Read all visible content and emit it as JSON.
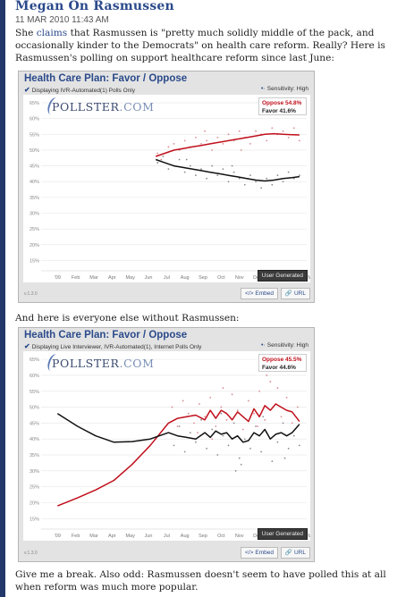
{
  "post": {
    "title": "Megan On Rasmussen",
    "date": "11 MAR 2010 11:43 AM",
    "p1_before": "She ",
    "p1_link": "claims",
    "p1_after": " that Rasmussen is \"pretty much solidly middle of the pack, and occasionally kinder to the Democrats\" on health care reform. Really? Here is Rasmussen's polling on support healthcare reform since last June:",
    "p2": "And here is everyone else without Rasmussen:",
    "p3": "Give me a break. Also odd: Rasmussen doesn't seem to have polled this at all when reform was much more popular."
  },
  "colors": {
    "oppose": "#c0101c",
    "favor": "#111111",
    "accent": "#2b4a8b",
    "sidebar": "#23386a"
  },
  "widget1": {
    "title": "Health Care Plan: Favor / Oppose",
    "subtitle": "Displaying IVR-Automated(1) Polls Only",
    "sensitivity": "Sensitivity: High",
    "logo": "POLLSTER",
    "logo_suffix": ".COM",
    "legend_oppose": "Oppose 54.8%",
    "legend_favor": "Favor 41.6%",
    "user_generated": "User Generated",
    "version": "v.1.3.0",
    "embed_label": "Embed",
    "url_label": "URL"
  },
  "widget2": {
    "title": "Health Care Plan: Favor / Oppose",
    "subtitle": "Displaying Live Interviewer, IVR-Automated(1), Internet Polls Only",
    "sensitivity": "Sensitivity: High",
    "logo": "POLLSTER",
    "logo_suffix": ".COM",
    "legend_oppose": "Oppose 45.5%",
    "legend_favor": "Favor 44.6%",
    "user_generated": "User Generated",
    "version": "v.1.3.0",
    "embed_label": "Embed",
    "url_label": "URL"
  },
  "chart_data": [
    {
      "type": "line",
      "y_ticks": [
        "65%",
        "60%",
        "55%",
        "50%",
        "45%",
        "40%",
        "35%",
        "30%",
        "25%",
        "20%",
        "15%"
      ],
      "ylim": [
        12,
        67
      ],
      "x_ticks": [
        "'09",
        "Feb",
        "Mar",
        "Apr",
        "May",
        "Jun",
        "Jul",
        "Aug",
        "Sep",
        "Oct",
        "Nov",
        "Dec",
        "'10",
        "Feb",
        "Mar"
      ],
      "xlim": [
        0,
        14.6
      ],
      "series": [
        {
          "name": "Oppose",
          "x": [
            6.3,
            6.8,
            7.3,
            7.8,
            8.3,
            8.8,
            9.3,
            9.8,
            10.3,
            10.8,
            11.3,
            11.8,
            12.3,
            12.8,
            13.3,
            13.8,
            14.2
          ],
          "values": [
            48,
            49,
            50,
            50.5,
            51,
            51.5,
            52,
            52.5,
            53,
            53.5,
            54,
            54.5,
            55,
            55.2,
            55,
            54.9,
            54.8
          ]
        },
        {
          "name": "Favor",
          "x": [
            6.3,
            6.8,
            7.3,
            7.8,
            8.3,
            8.8,
            9.3,
            9.8,
            10.3,
            10.8,
            11.3,
            11.8,
            12.3,
            12.8,
            13.3,
            13.8,
            14.2
          ],
          "values": [
            47,
            46,
            45,
            44.5,
            44,
            43.5,
            43,
            42.5,
            42,
            41.5,
            41,
            40.5,
            40.2,
            40.5,
            41,
            41.3,
            41.6
          ]
        }
      ],
      "scatter": [
        {
          "x": 6.4,
          "y": 49,
          "s": "o"
        },
        {
          "x": 6.6,
          "y": 47,
          "s": "o"
        },
        {
          "x": 7.0,
          "y": 51,
          "s": "o"
        },
        {
          "x": 7.3,
          "y": 52,
          "s": "o"
        },
        {
          "x": 7.6,
          "y": 50,
          "s": "o"
        },
        {
          "x": 7.9,
          "y": 53,
          "s": "o"
        },
        {
          "x": 8.2,
          "y": 51,
          "s": "o"
        },
        {
          "x": 8.5,
          "y": 54,
          "s": "o"
        },
        {
          "x": 8.8,
          "y": 52,
          "s": "o"
        },
        {
          "x": 9.1,
          "y": 53,
          "s": "o"
        },
        {
          "x": 9.4,
          "y": 50,
          "s": "o"
        },
        {
          "x": 9.7,
          "y": 54,
          "s": "o"
        },
        {
          "x": 10.0,
          "y": 52,
          "s": "o"
        },
        {
          "x": 10.3,
          "y": 55,
          "s": "o"
        },
        {
          "x": 10.6,
          "y": 53,
          "s": "o"
        },
        {
          "x": 10.9,
          "y": 56,
          "s": "o"
        },
        {
          "x": 11.2,
          "y": 54,
          "s": "o"
        },
        {
          "x": 11.5,
          "y": 52,
          "s": "o"
        },
        {
          "x": 11.8,
          "y": 56,
          "s": "o"
        },
        {
          "x": 12.1,
          "y": 55,
          "s": "o"
        },
        {
          "x": 12.4,
          "y": 53,
          "s": "o"
        },
        {
          "x": 12.7,
          "y": 57,
          "s": "o"
        },
        {
          "x": 13.0,
          "y": 55,
          "s": "o"
        },
        {
          "x": 13.3,
          "y": 56,
          "s": "o"
        },
        {
          "x": 13.6,
          "y": 54,
          "s": "o"
        },
        {
          "x": 13.9,
          "y": 57,
          "s": "o"
        },
        {
          "x": 14.2,
          "y": 53,
          "s": "o"
        },
        {
          "x": 9.0,
          "y": 56,
          "s": "o"
        },
        {
          "x": 11.0,
          "y": 50,
          "s": "o"
        },
        {
          "x": 6.4,
          "y": 46,
          "s": "f"
        },
        {
          "x": 6.7,
          "y": 48,
          "s": "f"
        },
        {
          "x": 7.0,
          "y": 44,
          "s": "f"
        },
        {
          "x": 7.3,
          "y": 45,
          "s": "f"
        },
        {
          "x": 7.6,
          "y": 47,
          "s": "f"
        },
        {
          "x": 7.9,
          "y": 43,
          "s": "f"
        },
        {
          "x": 8.2,
          "y": 45,
          "s": "f"
        },
        {
          "x": 8.5,
          "y": 42,
          "s": "f"
        },
        {
          "x": 8.8,
          "y": 44,
          "s": "f"
        },
        {
          "x": 9.1,
          "y": 41,
          "s": "f"
        },
        {
          "x": 9.4,
          "y": 45,
          "s": "f"
        },
        {
          "x": 9.7,
          "y": 42,
          "s": "f"
        },
        {
          "x": 10.0,
          "y": 44,
          "s": "f"
        },
        {
          "x": 10.3,
          "y": 40,
          "s": "f"
        },
        {
          "x": 10.6,
          "y": 43,
          "s": "f"
        },
        {
          "x": 10.9,
          "y": 41,
          "s": "f"
        },
        {
          "x": 11.2,
          "y": 39,
          "s": "f"
        },
        {
          "x": 11.5,
          "y": 42,
          "s": "f"
        },
        {
          "x": 11.8,
          "y": 40,
          "s": "f"
        },
        {
          "x": 12.1,
          "y": 38,
          "s": "f"
        },
        {
          "x": 12.4,
          "y": 41,
          "s": "f"
        },
        {
          "x": 12.7,
          "y": 39,
          "s": "f"
        },
        {
          "x": 13.0,
          "y": 42,
          "s": "f"
        },
        {
          "x": 13.3,
          "y": 40,
          "s": "f"
        },
        {
          "x": 13.6,
          "y": 43,
          "s": "f"
        },
        {
          "x": 13.9,
          "y": 41,
          "s": "f"
        },
        {
          "x": 14.2,
          "y": 42,
          "s": "f"
        },
        {
          "x": 8.0,
          "y": 47,
          "s": "f"
        },
        {
          "x": 10.5,
          "y": 45,
          "s": "f"
        }
      ]
    },
    {
      "type": "line",
      "y_ticks": [
        "65%",
        "60%",
        "55%",
        "50%",
        "45%",
        "40%",
        "35%",
        "30%",
        "25%",
        "20%",
        "15%"
      ],
      "ylim": [
        12,
        67
      ],
      "x_ticks": [
        "'09",
        "Feb",
        "Mar",
        "Apr",
        "May",
        "Jun",
        "Jul",
        "Aug",
        "Sep",
        "Oct",
        "Nov",
        "Dec",
        "'10",
        "Feb",
        "Mar"
      ],
      "xlim": [
        0,
        14.6
      ],
      "series": [
        {
          "name": "Oppose",
          "x": [
            0.9,
            2,
            3,
            4,
            5,
            6,
            7,
            7.5,
            8,
            8.5,
            9,
            9.3,
            9.6,
            9.9,
            10.2,
            10.5,
            10.8,
            11.1,
            11.4,
            11.7,
            12,
            12.3,
            12.6,
            12.9,
            13.2,
            13.5,
            13.8,
            14.2
          ],
          "values": [
            19,
            21.5,
            24,
            27,
            32,
            38,
            45,
            46.5,
            47,
            47.5,
            46,
            49,
            46.5,
            49,
            48,
            46,
            48.5,
            47,
            45.5,
            49.5,
            47,
            50.5,
            49,
            51,
            50,
            49,
            48.5,
            45.5
          ]
        },
        {
          "name": "Favor",
          "x": [
            0.9,
            2,
            3,
            4,
            5,
            6,
            7,
            7.5,
            8,
            8.5,
            9,
            9.3,
            9.6,
            9.9,
            10.2,
            10.5,
            10.8,
            11.1,
            11.4,
            11.7,
            12,
            12.3,
            12.6,
            12.9,
            13.2,
            13.5,
            13.8,
            14.2
          ],
          "values": [
            48,
            44,
            41,
            39,
            39.2,
            40,
            42,
            41,
            40.5,
            40,
            42,
            40.5,
            42.5,
            41.5,
            42,
            40,
            41,
            39,
            39.5,
            42,
            41,
            43,
            40,
            41.5,
            42,
            41,
            42,
            44.6
          ]
        }
      ],
      "scatter": [
        {
          "x": 7.2,
          "y": 50,
          "s": "o"
        },
        {
          "x": 7.5,
          "y": 44,
          "s": "o"
        },
        {
          "x": 7.8,
          "y": 52,
          "s": "o"
        },
        {
          "x": 8.1,
          "y": 48,
          "s": "o"
        },
        {
          "x": 8.4,
          "y": 45,
          "s": "o"
        },
        {
          "x": 8.7,
          "y": 51,
          "s": "o"
        },
        {
          "x": 9.0,
          "y": 47,
          "s": "o"
        },
        {
          "x": 9.3,
          "y": 53,
          "s": "o"
        },
        {
          "x": 9.6,
          "y": 44,
          "s": "o"
        },
        {
          "x": 9.9,
          "y": 50,
          "s": "o"
        },
        {
          "x": 10.2,
          "y": 46,
          "s": "o"
        },
        {
          "x": 10.5,
          "y": 54,
          "s": "o"
        },
        {
          "x": 10.8,
          "y": 49,
          "s": "o"
        },
        {
          "x": 11.1,
          "y": 43,
          "s": "o"
        },
        {
          "x": 11.4,
          "y": 52,
          "s": "o"
        },
        {
          "x": 11.7,
          "y": 48,
          "s": "o"
        },
        {
          "x": 12.0,
          "y": 55,
          "s": "o"
        },
        {
          "x": 12.3,
          "y": 46,
          "s": "o"
        },
        {
          "x": 12.6,
          "y": 58,
          "s": "o"
        },
        {
          "x": 12.9,
          "y": 51,
          "s": "o"
        },
        {
          "x": 13.2,
          "y": 47,
          "s": "o"
        },
        {
          "x": 13.5,
          "y": 53,
          "s": "o"
        },
        {
          "x": 13.8,
          "y": 45,
          "s": "o"
        },
        {
          "x": 14.1,
          "y": 50,
          "s": "o"
        },
        {
          "x": 12.4,
          "y": 60,
          "s": "o"
        },
        {
          "x": 10.0,
          "y": 56,
          "s": "o"
        },
        {
          "x": 8.6,
          "y": 42,
          "s": "o"
        },
        {
          "x": 11.9,
          "y": 44,
          "s": "o"
        },
        {
          "x": 13.0,
          "y": 56,
          "s": "o"
        },
        {
          "x": 9.4,
          "y": 40,
          "s": "o"
        },
        {
          "x": 7.3,
          "y": 38,
          "s": "f"
        },
        {
          "x": 7.6,
          "y": 44,
          "s": "f"
        },
        {
          "x": 7.9,
          "y": 36,
          "s": "f"
        },
        {
          "x": 8.2,
          "y": 42,
          "s": "f"
        },
        {
          "x": 8.5,
          "y": 39,
          "s": "f"
        },
        {
          "x": 8.8,
          "y": 46,
          "s": "f"
        },
        {
          "x": 9.1,
          "y": 37,
          "s": "f"
        },
        {
          "x": 9.4,
          "y": 43,
          "s": "f"
        },
        {
          "x": 9.7,
          "y": 35,
          "s": "f"
        },
        {
          "x": 10.0,
          "y": 41,
          "s": "f"
        },
        {
          "x": 10.3,
          "y": 38,
          "s": "f"
        },
        {
          "x": 10.6,
          "y": 45,
          "s": "f"
        },
        {
          "x": 10.9,
          "y": 34,
          "s": "f"
        },
        {
          "x": 11.2,
          "y": 40,
          "s": "f"
        },
        {
          "x": 11.5,
          "y": 37,
          "s": "f"
        },
        {
          "x": 11.8,
          "y": 44,
          "s": "f"
        },
        {
          "x": 12.1,
          "y": 36,
          "s": "f"
        },
        {
          "x": 12.4,
          "y": 42,
          "s": "f"
        },
        {
          "x": 12.7,
          "y": 33,
          "s": "f"
        },
        {
          "x": 13.0,
          "y": 39,
          "s": "f"
        },
        {
          "x": 13.3,
          "y": 45,
          "s": "f"
        },
        {
          "x": 13.6,
          "y": 37,
          "s": "f"
        },
        {
          "x": 13.9,
          "y": 41,
          "s": "f"
        },
        {
          "x": 14.2,
          "y": 38,
          "s": "f"
        },
        {
          "x": 12.2,
          "y": 47,
          "s": "f"
        },
        {
          "x": 9.9,
          "y": 48,
          "s": "f"
        },
        {
          "x": 11.0,
          "y": 32,
          "s": "f"
        },
        {
          "x": 8.0,
          "y": 47,
          "s": "f"
        },
        {
          "x": 13.4,
          "y": 34,
          "s": "f"
        },
        {
          "x": 10.7,
          "y": 30,
          "s": "f"
        }
      ]
    }
  ]
}
